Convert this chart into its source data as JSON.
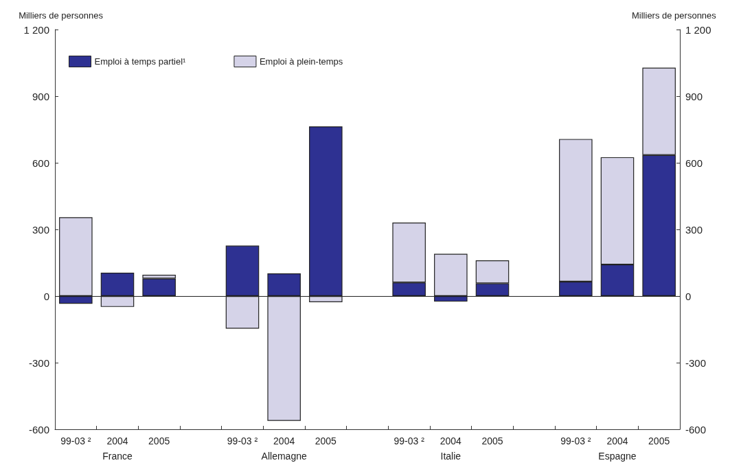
{
  "chart_data": {
    "type": "bar",
    "stacked": true,
    "ylabel": "Milliers de personnes",
    "y2label": "Milliers de personnes",
    "categories": [
      "99-03 ²",
      "2004\nFrance",
      "2005",
      null,
      "99-03 ²",
      "2004\nAllemagne",
      "2005",
      null,
      "99-03 ²",
      "2004\nItalie",
      "2005",
      null,
      "99-03 ²",
      "2004\nEspagne",
      "2005"
    ],
    "series": [
      {
        "name": "Emploi à temps partiel¹",
        "color": "#2e3192",
        "values": [
          -35,
          105,
          79,
          null,
          227,
          102,
          764,
          null,
          61,
          -25,
          57,
          null,
          65,
          142,
          635
        ]
      },
      {
        "name": "Emploi à plein-temps",
        "color": "#d5d3e8",
        "values": [
          355,
          -49,
          17,
          null,
          -147,
          -562,
          -28,
          null,
          270,
          190,
          104,
          null,
          642,
          483,
          393
        ]
      }
    ],
    "ylim": [
      -600,
      1200
    ],
    "yticks": [
      -600,
      -300,
      0,
      300,
      600,
      900,
      {
        "value": 1200,
        "label": "1 200"
      }
    ],
    "y2lim": [
      -600,
      1200
    ],
    "y2ticks": [
      -600,
      -300,
      0,
      300,
      600,
      900,
      {
        "value": 1200,
        "label": "1 200"
      }
    ],
    "ref_lines": [
      {
        "axis": "y",
        "value": 0
      }
    ],
    "legend": "top left",
    "grid": false
  }
}
